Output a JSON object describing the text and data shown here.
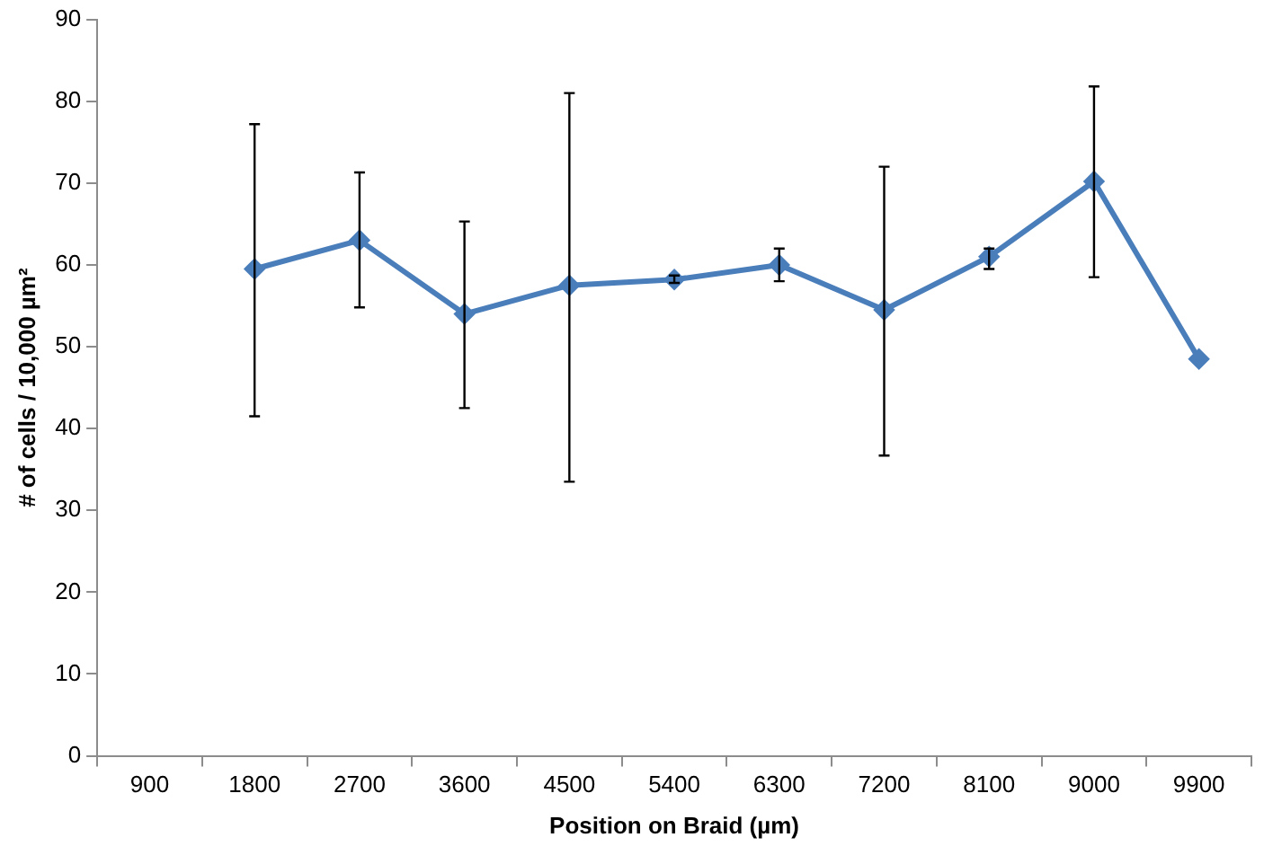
{
  "chart_data": {
    "type": "line",
    "xlabel": "Position on Braid (µm)",
    "ylabel": "# of cells / 10,000 µm²",
    "categories": [
      "900",
      "1800",
      "2700",
      "3600",
      "4500",
      "5400",
      "6300",
      "7200",
      "8100",
      "9000",
      "9900"
    ],
    "series": [
      {
        "color": "#4a7ebb",
        "values": [
          null,
          59.5,
          63,
          54,
          57.5,
          58.2,
          60,
          54.5,
          61,
          70.2,
          48.5
        ],
        "errors": [
          null,
          [
            41.5,
            77.2
          ],
          [
            54.8,
            71.3
          ],
          [
            42.5,
            65.3
          ],
          [
            33.5,
            81
          ],
          [
            57.8,
            58.7
          ],
          [
            58,
            62
          ],
          [
            36.7,
            72
          ],
          [
            59.5,
            62
          ],
          [
            58.5,
            81.8
          ],
          null
        ]
      }
    ],
    "ylim": [
      0,
      90
    ],
    "yticks": [
      0,
      10,
      20,
      30,
      40,
      50,
      60,
      70,
      80,
      90
    ],
    "grid": false,
    "legend": false,
    "marker": "diamond",
    "line_style": "solid"
  }
}
